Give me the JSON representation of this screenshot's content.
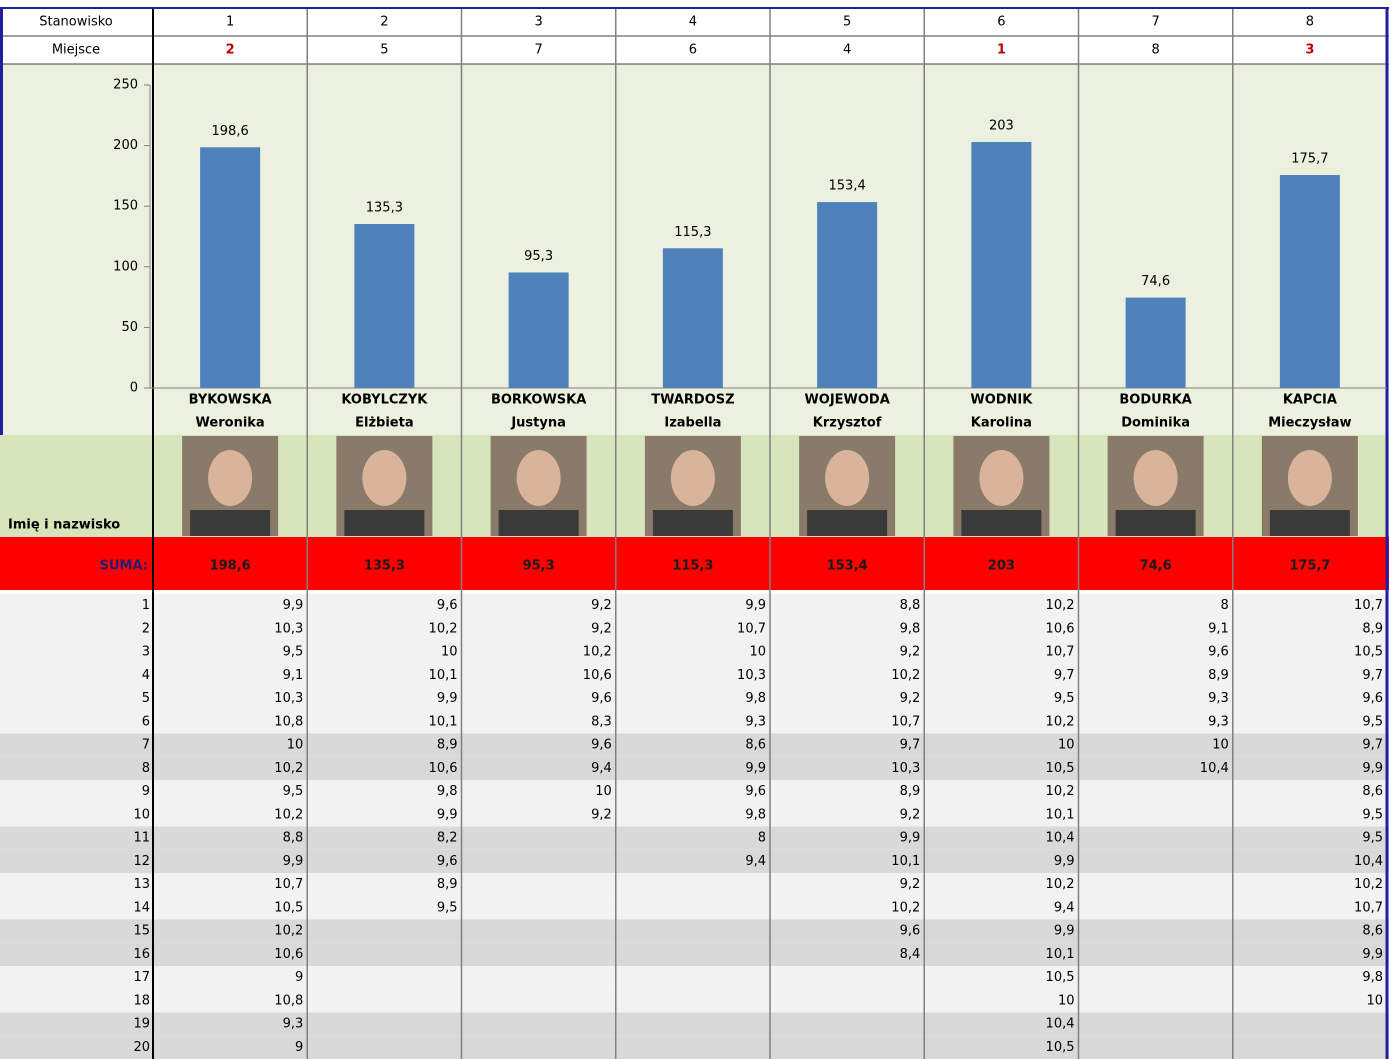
{
  "header": {
    "rows": [
      {
        "label": "Stanowisko",
        "values": [
          1,
          2,
          3,
          4,
          5,
          6,
          7,
          8
        ]
      },
      {
        "label": "Miejsce",
        "values": [
          2,
          5,
          7,
          6,
          4,
          1,
          8,
          3
        ]
      }
    ]
  },
  "chart_data": {
    "type": "bar",
    "categories": [
      [
        "BYKOWSKA",
        "Weronika"
      ],
      [
        "KOBYLCZYK",
        "Elżbieta"
      ],
      [
        "BORKOWSKA",
        "Justyna"
      ],
      [
        "TWARDOSZ",
        "Izabella"
      ],
      [
        "WOJEWODA",
        "Krzysztof"
      ],
      [
        "WODNIK",
        "Karolina"
      ],
      [
        "BODURKA",
        "Dominika"
      ],
      [
        "KAPCIA",
        "Mieczysław"
      ]
    ],
    "values": [
      198.6,
      135.3,
      95.3,
      115.3,
      153.4,
      203,
      74.6,
      175.7
    ],
    "value_labels": [
      "198,6",
      "135,3",
      "95,3",
      "115,3",
      "153,4",
      "203",
      "74,6",
      "175,7"
    ],
    "color": "#4f81bd",
    "ylim": [
      0,
      250
    ],
    "yticks": [
      0,
      50,
      100,
      150,
      200,
      250
    ]
  },
  "photo_row_label": "Imię i nazwisko",
  "sum_row": {
    "label": "SUMA:",
    "values": [
      "198,6",
      "135,3",
      "95,3",
      "115,3",
      "153,4",
      "203",
      "74,6",
      "175,7"
    ]
  },
  "table": {
    "row_numbers": [
      1,
      2,
      3,
      4,
      5,
      6,
      7,
      8,
      9,
      10,
      11,
      12,
      13,
      14,
      15,
      16,
      17,
      18,
      19,
      20
    ],
    "columns": [
      [
        "9,9",
        "10,3",
        "9,5",
        "9,1",
        "10,3",
        "10,8",
        "10",
        "10,2",
        "9,5",
        "10,2",
        "8,8",
        "9,9",
        "10,7",
        "10,5",
        "10,2",
        "10,6",
        "9",
        "10,8",
        "9,3",
        "9"
      ],
      [
        "9,6",
        "10,2",
        "10",
        "10,1",
        "9,9",
        "10,1",
        "8,9",
        "10,6",
        "9,8",
        "9,9",
        "8,2",
        "9,6",
        "8,9",
        "9,5",
        null,
        null,
        null,
        null,
        null,
        null
      ],
      [
        "9,2",
        "9,2",
        "10,2",
        "10,6",
        "9,6",
        "8,3",
        "9,6",
        "9,4",
        "10",
        "9,2",
        null,
        null,
        null,
        null,
        null,
        null,
        null,
        null,
        null,
        null
      ],
      [
        "9,9",
        "10,7",
        "10",
        "10,3",
        "9,8",
        "9,3",
        "8,6",
        "9,9",
        "9,6",
        "9,8",
        "8",
        "9,4",
        null,
        null,
        null,
        null,
        null,
        null,
        null,
        null
      ],
      [
        "8,8",
        "9,8",
        "9,2",
        "10,2",
        "9,2",
        "10,7",
        "9,7",
        "10,3",
        "8,9",
        "9,2",
        "9,9",
        "10,1",
        "9,2",
        "10,2",
        "9,6",
        "8,4",
        null,
        null,
        null,
        null
      ],
      [
        "10,2",
        "10,6",
        "10,7",
        "9,7",
        "9,5",
        "10,2",
        "10",
        "10,5",
        "10,2",
        "10,1",
        "10,4",
        "9,9",
        "10,2",
        "9,4",
        "9,9",
        "10,1",
        "10,5",
        "10",
        "10,4",
        "10,5"
      ],
      [
        "8",
        "9,1",
        "9,6",
        "8,9",
        "9,3",
        "9,3",
        "10",
        "10,4",
        null,
        null,
        null,
        null,
        null,
        null,
        null,
        null,
        null,
        null,
        null,
        null
      ],
      [
        "10,7",
        "8,9",
        "10,5",
        "9,7",
        "9,6",
        "9,5",
        "9,7",
        "9,9",
        "8,6",
        "9,5",
        "9,5",
        "10,4",
        "10,2",
        "10,7",
        "8,6",
        "9,9",
        "9,8",
        "10",
        null,
        null
      ]
    ]
  }
}
